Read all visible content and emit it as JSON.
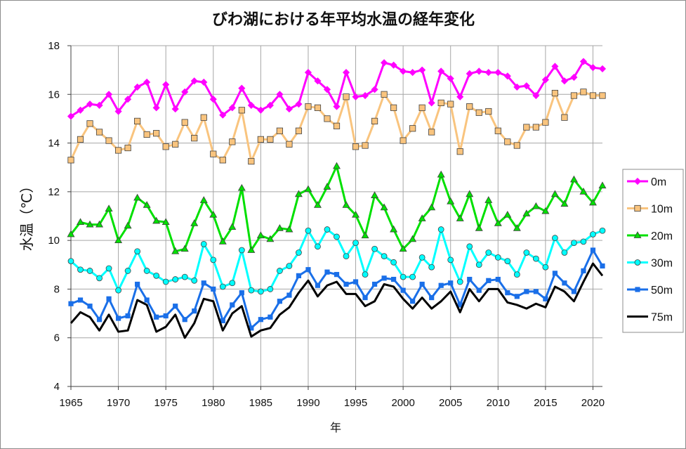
{
  "chart_data": {
    "type": "line",
    "title": "びわ湖における年平均水温の経年変化",
    "xlabel": "年",
    "ylabel": "水温（℃）",
    "xlim": [
      1965,
      2021
    ],
    "ylim": [
      4,
      18
    ],
    "x_ticks": [
      1965,
      1970,
      1975,
      1980,
      1985,
      1990,
      1995,
      2000,
      2005,
      2010,
      2015,
      2020
    ],
    "y_ticks": [
      4,
      6,
      8,
      10,
      12,
      14,
      16,
      18
    ],
    "grid": true,
    "legend_position": "right",
    "x": [
      1965,
      1966,
      1967,
      1968,
      1969,
      1970,
      1971,
      1972,
      1973,
      1974,
      1975,
      1976,
      1977,
      1978,
      1979,
      1980,
      1981,
      1982,
      1983,
      1984,
      1985,
      1986,
      1987,
      1988,
      1989,
      1990,
      1991,
      1992,
      1993,
      1994,
      1995,
      1996,
      1997,
      1998,
      1999,
      2000,
      2001,
      2002,
      2003,
      2004,
      2005,
      2006,
      2007,
      2008,
      2009,
      2010,
      2011,
      2012,
      2013,
      2014,
      2015,
      2016,
      2017,
      2018,
      2019,
      2020,
      2021
    ],
    "series": [
      {
        "name": "0m",
        "color": "#ff00ff",
        "marker": "diamond",
        "values": [
          15.1,
          15.35,
          15.6,
          15.55,
          16.0,
          15.3,
          15.8,
          16.3,
          16.5,
          15.45,
          16.4,
          15.4,
          16.1,
          16.55,
          16.5,
          15.8,
          15.15,
          15.45,
          16.25,
          15.55,
          15.35,
          15.55,
          16.0,
          15.4,
          15.6,
          16.9,
          16.55,
          16.2,
          15.5,
          16.9,
          15.9,
          15.95,
          16.2,
          17.3,
          17.2,
          16.95,
          16.9,
          17.0,
          15.65,
          16.95,
          16.65,
          15.9,
          16.85,
          16.95,
          16.9,
          16.9,
          16.75,
          16.3,
          16.35,
          15.95,
          16.6,
          17.15,
          16.55,
          16.7,
          17.35,
          17.1,
          17.05
        ]
      },
      {
        "name": "10m",
        "color": "#f9c47e",
        "marker": "square",
        "values": [
          13.3,
          14.15,
          14.8,
          14.45,
          14.1,
          13.7,
          13.8,
          14.9,
          14.35,
          14.4,
          13.85,
          13.95,
          14.85,
          14.2,
          15.05,
          13.55,
          13.3,
          14.05,
          15.35,
          13.25,
          14.15,
          14.15,
          14.5,
          13.95,
          14.5,
          15.5,
          15.45,
          15.0,
          14.7,
          15.9,
          13.85,
          13.9,
          14.9,
          16.0,
          15.45,
          14.1,
          14.6,
          15.45,
          14.45,
          15.65,
          15.6,
          13.65,
          15.5,
          15.25,
          15.3,
          14.5,
          14.05,
          13.9,
          14.65,
          14.65,
          14.85,
          16.05,
          15.05,
          15.95,
          16.1,
          15.95,
          15.95
        ]
      },
      {
        "name": "20m",
        "color": "#00e000",
        "marker": "triangle",
        "values": [
          10.25,
          10.75,
          10.65,
          10.65,
          11.3,
          10.0,
          10.6,
          11.75,
          11.45,
          10.8,
          10.75,
          9.55,
          9.65,
          10.7,
          11.65,
          11.05,
          9.95,
          10.55,
          12.15,
          9.6,
          10.2,
          10.05,
          10.5,
          10.45,
          11.9,
          12.1,
          11.45,
          12.2,
          13.05,
          11.45,
          11.05,
          10.2,
          11.85,
          11.35,
          10.45,
          9.65,
          10.05,
          10.9,
          11.35,
          12.7,
          11.6,
          10.9,
          11.9,
          10.5,
          11.65,
          10.7,
          11.05,
          10.5,
          11.1,
          11.4,
          11.2,
          11.9,
          11.5,
          12.5,
          12.0,
          11.55,
          12.25
        ]
      },
      {
        "name": "30m",
        "color": "#00ffff",
        "marker": "circle",
        "values": [
          9.15,
          8.8,
          8.75,
          8.45,
          8.85,
          7.95,
          8.75,
          9.55,
          8.75,
          8.55,
          8.3,
          8.4,
          8.5,
          8.35,
          9.85,
          9.2,
          8.1,
          8.25,
          9.6,
          7.95,
          7.9,
          8.0,
          8.75,
          8.95,
          9.5,
          10.4,
          9.75,
          10.45,
          10.15,
          9.35,
          9.9,
          8.6,
          9.65,
          9.35,
          9.1,
          8.5,
          8.5,
          9.3,
          8.9,
          10.45,
          9.2,
          8.3,
          9.75,
          9.0,
          9.5,
          9.3,
          9.15,
          8.6,
          9.5,
          9.25,
          8.9,
          10.1,
          9.5,
          9.9,
          9.95,
          10.25,
          10.4
        ]
      },
      {
        "name": "50m",
        "color": "#1a6fe8",
        "marker": "square",
        "values": [
          7.4,
          7.55,
          7.3,
          6.75,
          7.6,
          6.8,
          6.9,
          8.2,
          7.55,
          6.85,
          6.9,
          7.3,
          6.75,
          7.1,
          8.25,
          8.0,
          6.7,
          7.35,
          7.85,
          6.4,
          6.75,
          6.85,
          7.5,
          7.75,
          8.55,
          8.8,
          8.15,
          8.7,
          8.6,
          8.2,
          8.3,
          7.65,
          8.2,
          8.45,
          8.4,
          7.95,
          7.5,
          8.2,
          7.65,
          8.15,
          8.25,
          7.35,
          8.4,
          7.95,
          8.35,
          8.4,
          7.85,
          7.7,
          7.9,
          7.9,
          7.6,
          8.65,
          8.25,
          7.9,
          8.75,
          9.6,
          8.95
        ]
      },
      {
        "name": "75m",
        "color": "#000000",
        "marker": "none",
        "values": [
          6.6,
          7.05,
          6.85,
          6.3,
          6.95,
          6.25,
          6.3,
          7.55,
          7.35,
          6.25,
          6.45,
          6.95,
          6.0,
          6.6,
          7.6,
          7.5,
          6.3,
          7.0,
          7.3,
          6.05,
          6.3,
          6.4,
          6.95,
          7.25,
          7.85,
          8.35,
          7.7,
          8.15,
          8.3,
          7.8,
          7.8,
          7.3,
          7.5,
          8.2,
          8.1,
          7.6,
          7.2,
          7.65,
          7.2,
          7.5,
          7.9,
          7.05,
          8.0,
          7.5,
          8.0,
          8.0,
          7.45,
          7.35,
          7.2,
          7.4,
          7.25,
          8.1,
          7.9,
          7.5,
          8.3,
          9.05,
          8.55
        ]
      }
    ]
  }
}
